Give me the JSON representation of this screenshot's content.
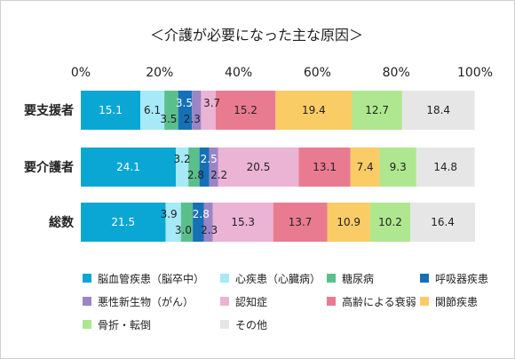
{
  "chart_data": {
    "type": "bar",
    "orientation": "horizontal",
    "stacked": true,
    "normalized": true,
    "title": "＜介護が必要になった主な原因＞",
    "categories": [
      "要支援者",
      "要介護者",
      "総数"
    ],
    "xlim": [
      0,
      100
    ],
    "x_tick_labels": [
      "0%",
      "20%",
      "40%",
      "60%",
      "80%",
      "100%"
    ],
    "grid": false,
    "legend_position": "bottom",
    "series": [
      {
        "name": "脳血管疾患（脳卒中）",
        "color": "#0aa7d4",
        "values": [
          15.1,
          24.1,
          21.5
        ]
      },
      {
        "name": "心疾患（心臓病）",
        "color": "#a6e9f7",
        "values": [
          6.1,
          3.2,
          3.9
        ]
      },
      {
        "name": "糖尿病",
        "color": "#5bbf8c",
        "values": [
          3.5,
          2.8,
          3.0
        ]
      },
      {
        "name": "呼吸器疾患",
        "color": "#1670b8",
        "values": [
          3.5,
          2.5,
          2.8
        ]
      },
      {
        "name": "悪性新生物（がん）",
        "color": "#9b85c6",
        "values": [
          2.3,
          2.2,
          2.3
        ]
      },
      {
        "name": "認知症",
        "color": "#ebb3d4",
        "values": [
          3.7,
          20.5,
          15.3
        ]
      },
      {
        "name": "高齢による衰弱",
        "color": "#e97b91",
        "values": [
          15.2,
          13.1,
          13.7
        ]
      },
      {
        "name": "関節疾患",
        "color": "#f9cc66",
        "values": [
          19.4,
          7.4,
          10.9
        ]
      },
      {
        "name": "骨折・転倒",
        "color": "#aee78f",
        "values": [
          12.7,
          9.3,
          10.2
        ]
      },
      {
        "name": "その他",
        "color": "#e6e6e6",
        "values": [
          18.4,
          14.8,
          16.4
        ]
      }
    ],
    "value_labels": [
      [
        "15.1",
        "6.1",
        "3.5",
        "3.5",
        "2.3",
        "3.7",
        "15.2",
        "19.4",
        "12.7",
        "18.4"
      ],
      [
        "24.1",
        "3.2",
        "2.8",
        "2.5",
        "2.2",
        "20.5",
        "13.1",
        "7.4",
        "9.3",
        "14.8"
      ],
      [
        "21.5",
        "3.9",
        "3.0",
        "2.8",
        "2.3",
        "15.3",
        "13.7",
        "10.9",
        "10.2",
        "16.4"
      ]
    ]
  }
}
